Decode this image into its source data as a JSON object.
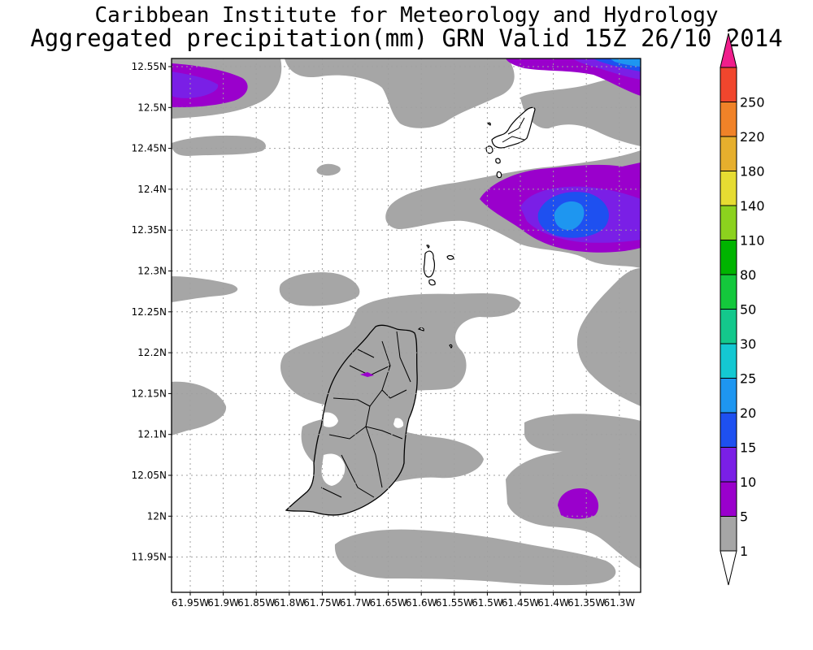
{
  "title_line1": "Caribbean Institute for Meteorology and Hydrology",
  "title_line2": "Aggregated precipitation(mm) GRN Valid 15Z 26/10 2014",
  "lat_labels": [
    "12.55N",
    "12.5N",
    "12.45N",
    "12.4N",
    "12.35N",
    "12.3N",
    "12.25N",
    "12.2N",
    "12.15N",
    "12.1N",
    "12.05N",
    "12N",
    "11.95N"
  ],
  "lon_labels": [
    "61.95W",
    "61.9W",
    "61.85W",
    "61.8W",
    "61.75W",
    "61.7W",
    "61.65W",
    "61.6W",
    "61.55W",
    "61.5W",
    "61.45W",
    "61.4W",
    "61.35W",
    "61.3W"
  ],
  "colorbar": {
    "levels": [
      "1",
      "5",
      "10",
      "15",
      "20",
      "25",
      "30",
      "50",
      "80",
      "110",
      "140",
      "180",
      "220",
      "250"
    ],
    "colors": [
      "#a6a6a6",
      "#9a00cc",
      "#7a1fe6",
      "#1e50f0",
      "#1e96f0",
      "#14c8d2",
      "#14c88c",
      "#14c83c",
      "#00b400",
      "#8cd21e",
      "#e6dc32",
      "#e6af2d",
      "#f08228",
      "#f0462d",
      "#f01e8c"
    ]
  },
  "map": {
    "gray": "#a6a6a6",
    "purple": "#9a00cc",
    "violet": "#7a1fe6",
    "blue": "#1e50f0",
    "lightblue": "#1e96f0"
  }
}
